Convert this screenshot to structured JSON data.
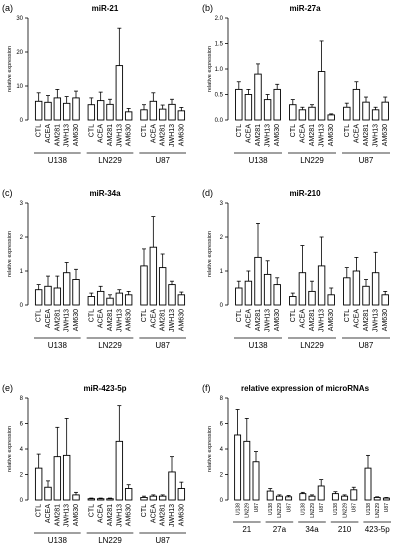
{
  "groups": [
    "U138",
    "LN229",
    "U87"
  ],
  "treatments": [
    "CTL",
    "ACEA",
    "AM281",
    "JWH13",
    "AM630"
  ],
  "chart_data": [
    {
      "letter": "(a)",
      "title": "miR-21",
      "type": "bar",
      "ylabel": "relative expression",
      "ylim": [
        0,
        30
      ],
      "yticks": [
        0,
        10,
        20,
        30
      ],
      "series": [
        {
          "name": "U138",
          "values": [
            5.5,
            5.2,
            6.5,
            4.9,
            6.5
          ],
          "errors": [
            2.5,
            2.0,
            2.5,
            2.0,
            2.0
          ]
        },
        {
          "name": "LN229",
          "values": [
            4.5,
            5.7,
            4.6,
            16.0,
            2.4
          ],
          "errors": [
            2.0,
            2.5,
            1.5,
            11.0,
            1.0
          ]
        },
        {
          "name": "U87",
          "values": [
            3.0,
            5.5,
            3.2,
            4.6,
            2.7
          ],
          "errors": [
            1.5,
            2.5,
            1.2,
            1.5,
            1.0
          ]
        }
      ]
    },
    {
      "letter": "(b)",
      "title": "miR-27a",
      "type": "bar",
      "ylabel": "relative expression",
      "ylim": [
        0,
        2.0
      ],
      "yticks": [
        0.0,
        0.5,
        1.0,
        1.5,
        2.0
      ],
      "series": [
        {
          "name": "U138",
          "values": [
            0.6,
            0.5,
            0.9,
            0.4,
            0.6
          ],
          "errors": [
            0.15,
            0.1,
            0.2,
            0.1,
            0.1
          ]
        },
        {
          "name": "LN229",
          "values": [
            0.3,
            0.2,
            0.25,
            0.95,
            0.1
          ],
          "errors": [
            0.1,
            0.05,
            0.05,
            0.6,
            0.02
          ]
        },
        {
          "name": "U87",
          "values": [
            0.25,
            0.6,
            0.35,
            0.2,
            0.35
          ],
          "errors": [
            0.08,
            0.15,
            0.1,
            0.05,
            0.1
          ]
        }
      ]
    },
    {
      "letter": "(c)",
      "title": "miR-34a",
      "type": "bar",
      "ylabel": "relative expression",
      "ylim": [
        0,
        3
      ],
      "yticks": [
        0,
        1,
        2,
        3
      ],
      "series": [
        {
          "name": "U138",
          "values": [
            0.45,
            0.55,
            0.5,
            0.95,
            0.75
          ],
          "errors": [
            0.15,
            0.3,
            0.35,
            0.3,
            0.3
          ]
        },
        {
          "name": "LN229",
          "values": [
            0.25,
            0.4,
            0.2,
            0.35,
            0.3
          ],
          "errors": [
            0.1,
            0.15,
            0.1,
            0.1,
            0.1
          ]
        },
        {
          "name": "U87",
          "values": [
            1.15,
            1.7,
            1.1,
            0.6,
            0.3
          ],
          "errors": [
            0.5,
            0.9,
            0.4,
            0.1,
            0.08
          ]
        }
      ]
    },
    {
      "letter": "(d)",
      "title": "miR-210",
      "type": "bar",
      "ylabel": "relative expression",
      "ylim": [
        0,
        3
      ],
      "yticks": [
        0,
        1,
        2,
        3
      ],
      "series": [
        {
          "name": "U138",
          "values": [
            0.5,
            0.7,
            1.4,
            0.9,
            0.6
          ],
          "errors": [
            0.2,
            0.3,
            1.0,
            0.4,
            0.2
          ]
        },
        {
          "name": "LN229",
          "values": [
            0.25,
            0.95,
            0.4,
            1.15,
            0.3
          ],
          "errors": [
            0.1,
            0.8,
            0.3,
            0.85,
            0.2
          ]
        },
        {
          "name": "U87",
          "values": [
            0.8,
            1.0,
            0.55,
            0.95,
            0.3
          ],
          "errors": [
            0.3,
            0.4,
            0.2,
            0.6,
            0.1
          ]
        }
      ]
    },
    {
      "letter": "(e)",
      "title": "miR-423-5p",
      "type": "bar",
      "ylabel": "relative expression",
      "ylim": [
        0,
        8
      ],
      "yticks": [
        0,
        2,
        4,
        6,
        8
      ],
      "series": [
        {
          "name": "U138",
          "values": [
            2.5,
            1.0,
            3.4,
            3.5,
            0.4
          ],
          "errors": [
            1.1,
            0.5,
            2.3,
            2.9,
            0.2
          ]
        },
        {
          "name": "LN229",
          "values": [
            0.1,
            0.1,
            0.1,
            4.6,
            0.9
          ],
          "errors": [
            0.05,
            0.05,
            0.05,
            2.8,
            0.3
          ]
        },
        {
          "name": "U87",
          "values": [
            0.2,
            0.3,
            0.3,
            2.2,
            0.9
          ],
          "errors": [
            0.1,
            0.1,
            0.1,
            1.2,
            0.5
          ]
        }
      ]
    },
    {
      "letter": "(f)",
      "title": "relative expression of microRNAs",
      "type": "bar",
      "ylabel": "relative expression",
      "ylim": [
        0,
        8
      ],
      "yticks": [
        0,
        2,
        4,
        6,
        8
      ],
      "categories": [
        "21",
        "27a",
        "34a",
        "210",
        "423-5p"
      ],
      "series": [
        {
          "name": "U138",
          "values": [
            5.1,
            0.7,
            0.5,
            0.5,
            2.5
          ],
          "errors": [
            2.0,
            0.2,
            0.1,
            0.15,
            1.0
          ]
        },
        {
          "name": "LN229",
          "values": [
            4.6,
            0.3,
            0.3,
            0.3,
            0.2
          ],
          "errors": [
            1.8,
            0.1,
            0.1,
            0.1,
            0.05
          ]
        },
        {
          "name": "U87",
          "values": [
            3.0,
            0.25,
            1.1,
            0.8,
            0.15
          ],
          "errors": [
            0.8,
            0.1,
            0.5,
            0.2,
            0.05
          ]
        }
      ]
    }
  ]
}
